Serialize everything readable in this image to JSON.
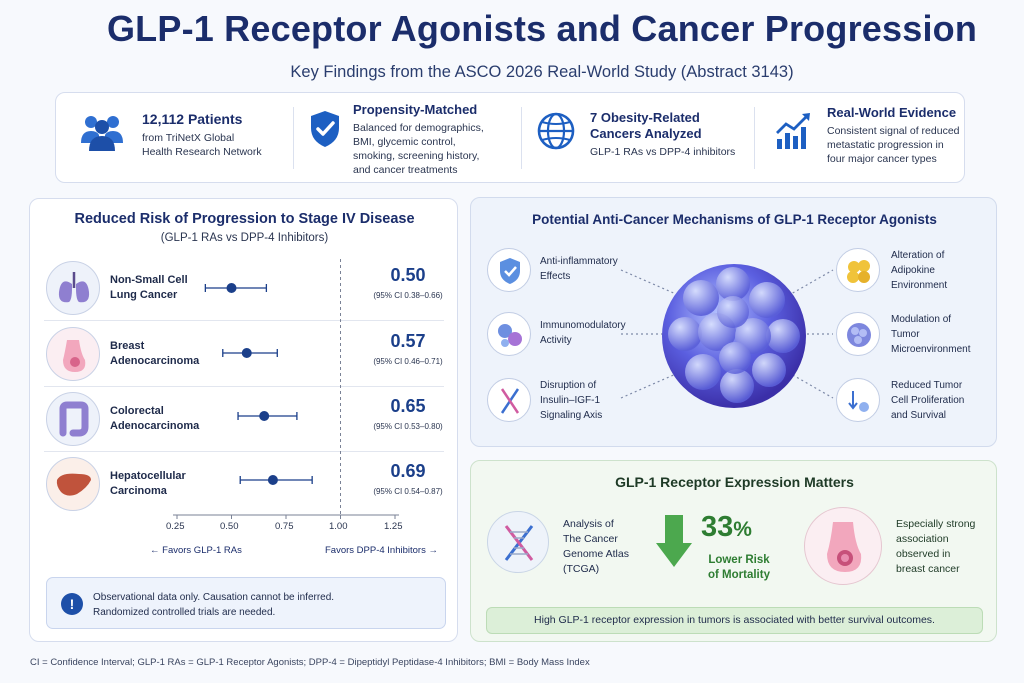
{
  "title": "GLP-1 Receptor Agonists and Cancer Progression",
  "subtitle": "Key Findings from the ASCO 2026 Real-World Study (Abstract 3143)",
  "stats": [
    {
      "icon": "patients-icon",
      "heading": "12,112 Patients",
      "lines": [
        "from TriNetX Global",
        "Health Research Network"
      ]
    },
    {
      "icon": "shield-check-icon",
      "heading": "Propensity-Matched",
      "lines": [
        "Balanced for demographics,",
        "BMI, glycemic control,",
        "smoking, screening history,",
        "and cancer treatments"
      ]
    },
    {
      "icon": "globe-icon",
      "heading_lines": [
        "7 Obesity-Related",
        "Cancers Analyzed"
      ],
      "lines": [
        "GLP-1 RAs vs DPP-4 inhibitors"
      ]
    },
    {
      "icon": "bar-chart-up-icon",
      "heading": "Real-World Evidence",
      "lines": [
        "Consistent signal of reduced",
        "metastatic progression in",
        "four major cancer types"
      ]
    }
  ],
  "forest": {
    "title": "Reduced Risk of Progression to Stage IV Disease",
    "subtitle": "(GLP-1 RAs vs DPP-4 Inhibitors)",
    "rows": [
      {
        "organ": "lung-icon",
        "name": [
          "Non-Small Cell",
          "Lung Cancer"
        ],
        "hr": 0.5,
        "lo": 0.38,
        "hi": 0.66,
        "hr_label": "0.50",
        "ci_label": "(95% CI 0.38–0.66)"
      },
      {
        "organ": "breast-icon",
        "name": [
          "Breast",
          "Adenocarcinoma"
        ],
        "hr": 0.57,
        "lo": 0.46,
        "hi": 0.71,
        "hr_label": "0.57",
        "ci_label": "(95% CI 0.46–0.71)"
      },
      {
        "organ": "colon-icon",
        "name": [
          "Colorectal",
          "Adenocarcinoma"
        ],
        "hr": 0.65,
        "lo": 0.53,
        "hi": 0.8,
        "hr_label": "0.65",
        "ci_label": "(95% CI 0.53–0.80)"
      },
      {
        "organ": "liver-icon",
        "name": [
          "Hepatocellular",
          "Carcinoma"
        ],
        "hr": 0.69,
        "lo": 0.54,
        "hi": 0.87,
        "hr_label": "0.69",
        "ci_label": "(95% CI 0.54–0.87)"
      }
    ],
    "ticks": [
      "0.25",
      "0.50",
      "0.75",
      "1.00",
      "1.25"
    ],
    "favor_left": "← Favors GLP-1 RAs",
    "favor_right": "Favors DPP-4 Inhibitors →",
    "note_lines": [
      "Observational data only. Causation cannot be inferred.",
      "Randomized controlled trials are needed."
    ]
  },
  "mechanisms": {
    "title": "Potential Anti-Cancer Mechanisms of GLP-1 Receptor Agonists",
    "left": [
      {
        "icon": "shield-icon",
        "lines": [
          "Anti-inflammatory",
          "Effects"
        ]
      },
      {
        "icon": "immune-cells-icon",
        "lines": [
          "Immunomodulatory",
          "Activity"
        ]
      },
      {
        "icon": "dna-icon",
        "lines": [
          "Disruption of",
          "Insulin–IGF-1",
          "Signaling Axis"
        ]
      }
    ],
    "right": [
      {
        "icon": "adipocyte-icon",
        "lines": [
          "Alteration of",
          "Adipokine",
          "Environment"
        ]
      },
      {
        "icon": "tumor-cell-icon",
        "lines": [
          "Modulation of",
          "Tumor",
          "Microenvironment"
        ]
      },
      {
        "icon": "down-arrows-icon",
        "lines": [
          "Reduced Tumor",
          "Cell Proliferation",
          "and Survival"
        ]
      }
    ]
  },
  "expression": {
    "title": "GLP-1 Receptor Expression Matters",
    "tcga_lines": [
      "Analysis of",
      "The Cancer",
      "Genome Atlas",
      "(TCGA)"
    ],
    "stat_value": "33",
    "stat_unit": "%",
    "stat_lines": [
      "Lower Risk",
      "of Mortality"
    ],
    "breast_lines": [
      "Especially strong",
      "association",
      "observed in",
      "breast cancer"
    ],
    "footer": "High GLP-1 receptor expression in tumors is associated with better survival outcomes."
  },
  "footnote": "CI = Confidence Interval; GLP-1 RAs = GLP-1 Receptor Agonists; DPP-4 = Dipeptidyl Peptidase-4 Inhibitors; BMI = Body Mass Index"
}
